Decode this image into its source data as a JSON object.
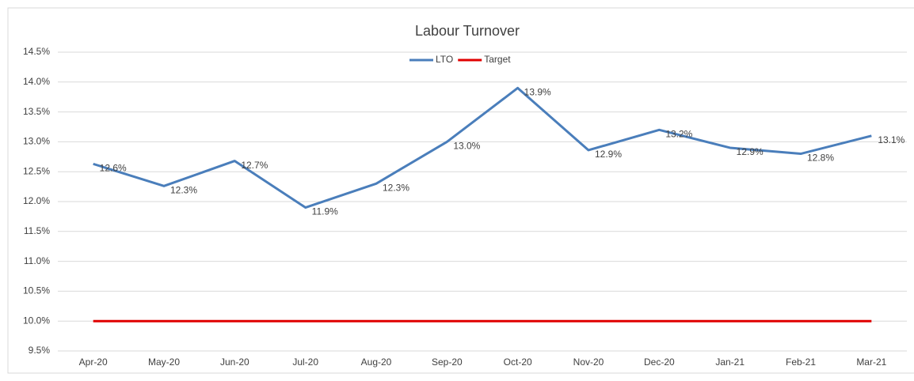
{
  "chart_data": {
    "type": "line",
    "title": "Labour Turnover",
    "categories": [
      "Apr-20",
      "May-20",
      "Jun-20",
      "Jul-20",
      "Aug-20",
      "Sep-20",
      "Oct-20",
      "Nov-20",
      "Dec-20",
      "Jan-21",
      "Feb-21",
      "Mar-21"
    ],
    "series": [
      {
        "name": "LTO",
        "color": "#4a7ebb",
        "values": [
          12.63,
          12.26,
          12.68,
          11.9,
          12.3,
          13.0,
          13.9,
          12.86,
          13.2,
          12.9,
          12.8,
          13.1
        ],
        "value_labels": [
          "12.6%",
          "12.3%",
          "12.7%",
          "11.9%",
          "12.3%",
          "13.0%",
          "13.9%",
          "12.9%",
          "13.2%",
          "12.9%",
          "12.8%",
          "13.1%"
        ]
      },
      {
        "name": "Target",
        "color": "#e00000",
        "values": [
          10,
          10,
          10,
          10,
          10,
          10,
          10,
          10,
          10,
          10,
          10,
          10
        ]
      }
    ],
    "ylim": [
      9.5,
      14.5
    ],
    "yticks": [
      {
        "value": 9.5,
        "label": "9.5%"
      },
      {
        "value": 10,
        "label": "10.0%"
      },
      {
        "value": 10.5,
        "label": "10.5%"
      },
      {
        "value": 11,
        "label": "11.0%"
      },
      {
        "value": 11.5,
        "label": "11.5%"
      },
      {
        "value": 12,
        "label": "12.0%"
      },
      {
        "value": 12.5,
        "label": "12.5%"
      },
      {
        "value": 13,
        "label": "13.0%"
      },
      {
        "value": 13.5,
        "label": "13.5%"
      },
      {
        "value": 14,
        "label": "14.0%"
      },
      {
        "value": 14.5,
        "label": "14.5%"
      }
    ],
    "grid": true,
    "legend": "top"
  }
}
